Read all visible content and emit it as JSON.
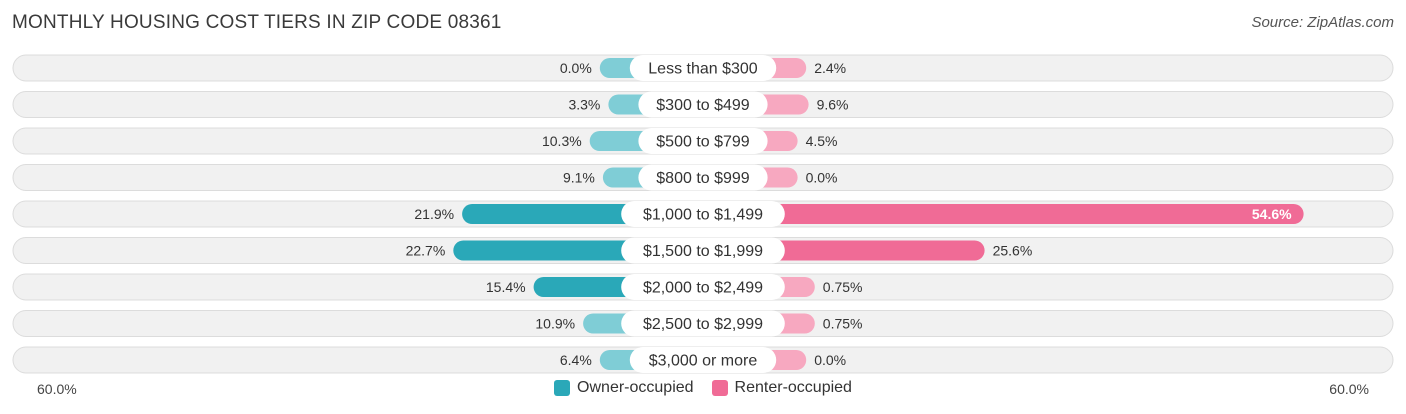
{
  "title": "MONTHLY HOUSING COST TIERS IN ZIP CODE 08361",
  "source": "Source: ZipAtlas.com",
  "axis": {
    "left_label": "60.0%",
    "right_label": "60.0%"
  },
  "legend": {
    "owner_label": "Owner-occupied",
    "renter_label": "Renter-occupied"
  },
  "colors": {
    "owner": "#2aa8b8",
    "owner_light": "#7fcdd6",
    "renter": "#f06b96",
    "renter_light": "#f7a8c0",
    "row_bg": "#f1f1f1"
  },
  "chart_data": {
    "type": "bar",
    "orientation": "horizontal-diverging",
    "title": "MONTHLY HOUSING COST TIERS IN ZIP CODE 08361",
    "xlim": [
      -60,
      60
    ],
    "categories": [
      "Less than $300",
      "$300 to $499",
      "$500 to $799",
      "$800 to $999",
      "$1,000 to $1,499",
      "$1,500 to $1,999",
      "$2,000 to $2,499",
      "$2,500 to $2,999",
      "$3,000 or more"
    ],
    "series": [
      {
        "name": "Owner-occupied",
        "values": [
          0.0,
          3.3,
          10.3,
          9.1,
          21.9,
          22.7,
          15.4,
          10.9,
          6.4
        ],
        "labels": [
          "0.0%",
          "3.3%",
          "10.3%",
          "9.1%",
          "21.9%",
          "22.7%",
          "15.4%",
          "10.9%",
          "6.4%"
        ]
      },
      {
        "name": "Renter-occupied",
        "values": [
          2.4,
          9.6,
          4.5,
          0.0,
          54.6,
          25.6,
          0.75,
          0.75,
          0.0
        ],
        "labels": [
          "2.4%",
          "9.6%",
          "4.5%",
          "0.0%",
          "54.6%",
          "25.6%",
          "0.75%",
          "0.75%",
          "0.0%"
        ]
      }
    ],
    "legend_position": "bottom-center",
    "grid": false
  }
}
